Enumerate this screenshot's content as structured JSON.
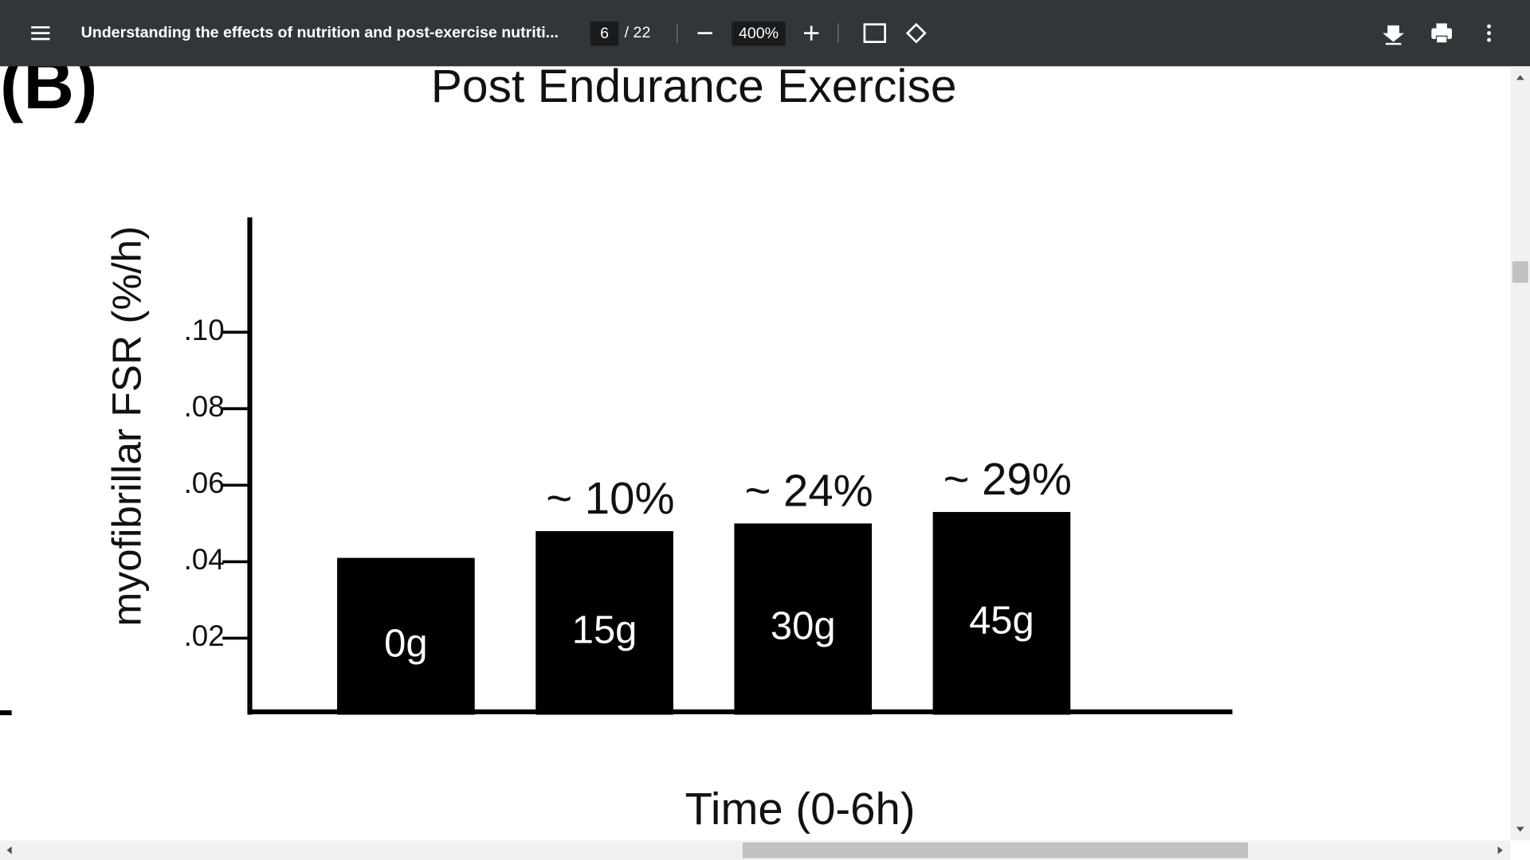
{
  "viewer": {
    "document_title": "Understanding the effects of nutrition and post-exercise nutriti...",
    "page": "6",
    "page_count": "/ 22",
    "zoom": "400%"
  },
  "chart_data": {
    "type": "bar",
    "panel_label": "(B)",
    "title": "Post Endurance Exercise",
    "y_label": "myofibrillar FSR (%/h)",
    "x_label": "Time (0-6h)",
    "categories": [
      "0g",
      "15g",
      "30g",
      "45g"
    ],
    "values": [
      0.041,
      0.048,
      0.05,
      0.053
    ],
    "annotations": [
      null,
      "~ 10%",
      "~ 24%",
      "~ 29%"
    ],
    "color": "#000000",
    "ylim": [
      0,
      0.13
    ],
    "yticks": [
      {
        "value": 0.02,
        "label": ".02"
      },
      {
        "value": 0.04,
        "label": ".04"
      },
      {
        "value": 0.06,
        "label": ".06"
      },
      {
        "value": 0.08,
        "label": ".08"
      },
      {
        "value": 0.1,
        "label": ".10"
      }
    ],
    "grid": false
  }
}
